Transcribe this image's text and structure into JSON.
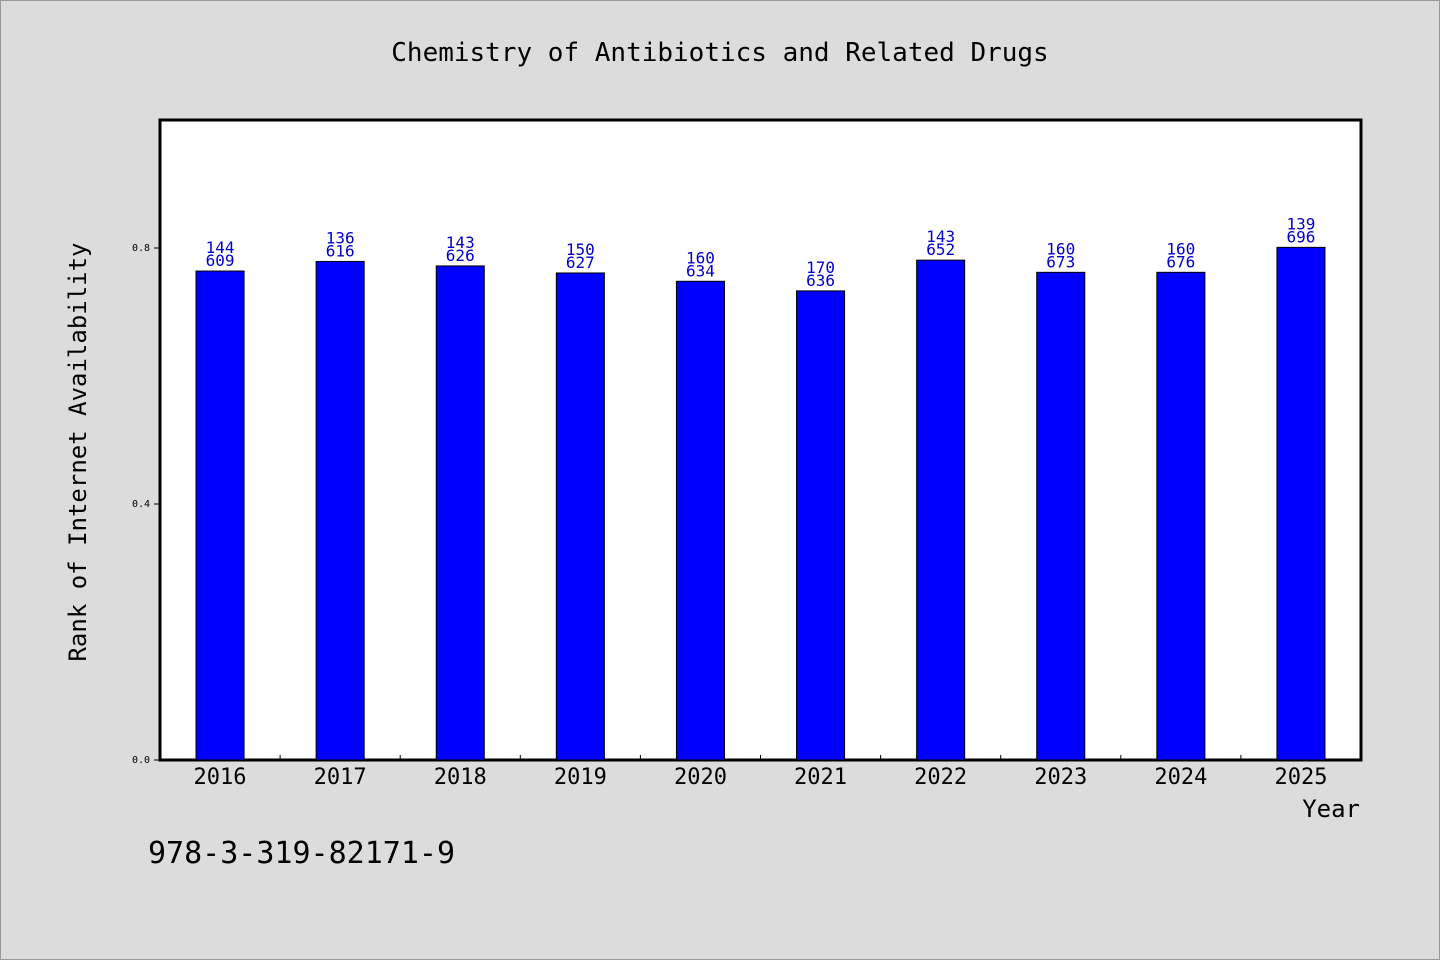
{
  "colors": {
    "background": "#dcdcdc",
    "plot_background": "#ffffff",
    "bar": "#0000ff",
    "bar_label": "#0000cc",
    "text": "#000000"
  },
  "isbn": "978-3-319-82171-9",
  "chart_data": {
    "type": "bar",
    "title": "Chemistry of Antibiotics and Related Drugs",
    "xlabel": "Year",
    "ylabel": "Rank of Internet Availability",
    "ylim": [
      0,
      1.0
    ],
    "yticks": [
      "0.0",
      "0.4",
      "0.8"
    ],
    "grid": false,
    "categories": [
      "2016",
      "2017",
      "2018",
      "2019",
      "2020",
      "2021",
      "2022",
      "2023",
      "2024",
      "2025"
    ],
    "values": [
      0.764,
      0.779,
      0.772,
      0.761,
      0.748,
      0.733,
      0.781,
      0.762,
      0.762,
      0.801
    ],
    "bar_labels": [
      [
        "144",
        "609"
      ],
      [
        "136",
        "616"
      ],
      [
        "143",
        "626"
      ],
      [
        "150",
        "627"
      ],
      [
        "160",
        "634"
      ],
      [
        "170",
        "636"
      ],
      [
        "143",
        "652"
      ],
      [
        "160",
        "673"
      ],
      [
        "160",
        "676"
      ],
      [
        "139",
        "696"
      ]
    ]
  }
}
